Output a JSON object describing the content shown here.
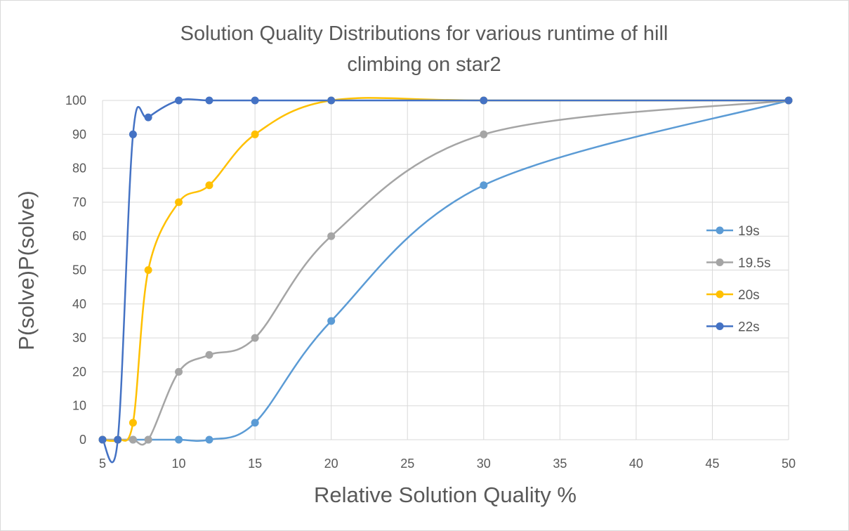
{
  "chart_data": {
    "type": "line",
    "title_lines": [
      "Solution Quality Distributions for various runtime of hill",
      "climbing on star2"
    ],
    "xlabel": "Relative Solution Quality %",
    "ylabel": "P(solve)P(solve)",
    "xlim": [
      5,
      50
    ],
    "ylim": [
      0,
      100
    ],
    "x_ticks": [
      5,
      10,
      15,
      20,
      25,
      30,
      35,
      40,
      45,
      50
    ],
    "y_ticks": [
      0,
      10,
      20,
      30,
      40,
      50,
      60,
      70,
      80,
      90,
      100
    ],
    "grid": true,
    "smooth": true,
    "legend_position": "right",
    "series": [
      {
        "name": "19s",
        "color": "#5b9bd5",
        "points": [
          [
            5,
            0
          ],
          [
            6,
            0
          ],
          [
            7,
            0
          ],
          [
            8,
            0
          ],
          [
            10,
            0
          ],
          [
            12,
            0
          ],
          [
            15,
            5
          ],
          [
            20,
            35
          ],
          [
            30,
            75
          ],
          [
            50,
            100
          ]
        ]
      },
      {
        "name": "19.5s",
        "color": "#a5a5a5",
        "points": [
          [
            5,
            0
          ],
          [
            6,
            0
          ],
          [
            7,
            0
          ],
          [
            8,
            0
          ],
          [
            10,
            20
          ],
          [
            12,
            25
          ],
          [
            15,
            30
          ],
          [
            20,
            60
          ],
          [
            30,
            90
          ],
          [
            50,
            100
          ]
        ]
      },
      {
        "name": "20s",
        "color": "#ffc000",
        "points": [
          [
            5,
            0
          ],
          [
            6,
            0
          ],
          [
            7,
            5
          ],
          [
            8,
            50
          ],
          [
            10,
            70
          ],
          [
            12,
            75
          ],
          [
            15,
            90
          ],
          [
            20,
            100
          ],
          [
            30,
            100
          ],
          [
            50,
            100
          ]
        ]
      },
      {
        "name": "22s",
        "color": "#4472c4",
        "points": [
          [
            5,
            0
          ],
          [
            6,
            0
          ],
          [
            7,
            90
          ],
          [
            8,
            95
          ],
          [
            10,
            100
          ],
          [
            12,
            100
          ],
          [
            15,
            100
          ],
          [
            20,
            100
          ],
          [
            30,
            100
          ],
          [
            50,
            100
          ]
        ]
      }
    ]
  }
}
